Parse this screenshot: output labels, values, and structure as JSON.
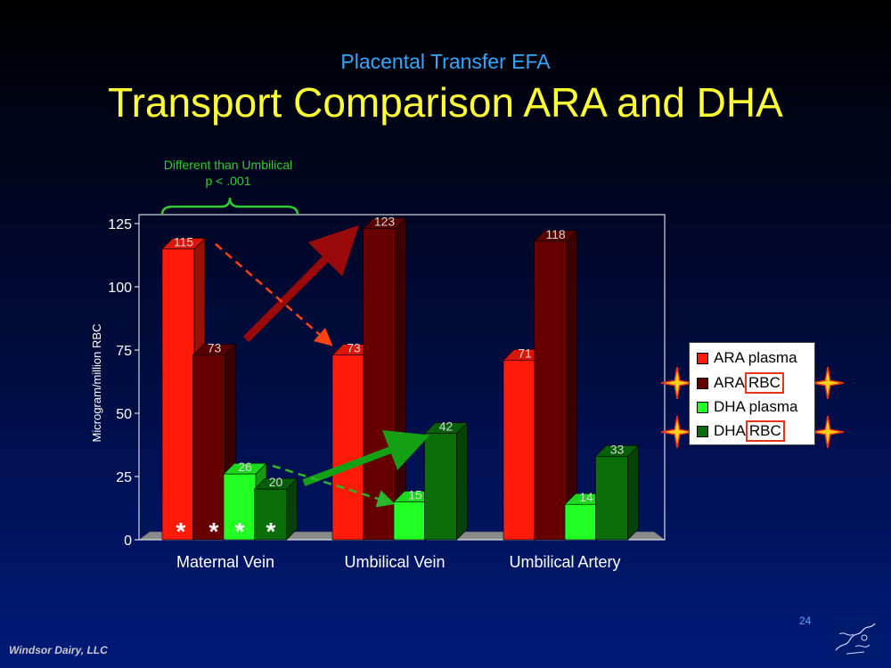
{
  "slide": {
    "subtitle": "Placental Transfer EFA",
    "title": "Transport Comparison ARA and DHA",
    "footer": "Windsor Dairy, LLC",
    "page_number": "24"
  },
  "annotations": {
    "brace_line1": "Different  than Umbilical",
    "brace_line2": "p < .001",
    "asterisk": "*"
  },
  "colors": {
    "ara_plasma": "#ff1a0a",
    "ara_rbc": "#660000",
    "dha_plasma": "#22ff22",
    "dha_rbc": "#0a6e0a",
    "arrow_red_dark": "#9b0a0a",
    "arrow_green": "#14a014",
    "dashed_red": "#ff4411",
    "dashed_green": "#2bb52b",
    "brace": "#33cc33",
    "star_fill": "#ffd21a",
    "star_outline": "#e8341c"
  },
  "legend": {
    "items": [
      {
        "text": "ARA plasma",
        "boxed": "",
        "color": "#ff1a0a"
      },
      {
        "text": "ARA ",
        "boxed": "RBC",
        "color": "#660000"
      },
      {
        "text": "DHA plasma",
        "boxed": "",
        "color": "#22ff22"
      },
      {
        "text": "DHA ",
        "boxed": "RBC",
        "color": "#0a6e0a"
      }
    ]
  },
  "chart_data": {
    "type": "bar",
    "title": "Transport Comparison ARA and DHA",
    "subtitle": "Placental Transfer EFA",
    "xlabel": "",
    "ylabel": "Microgram/million RBC",
    "ylim": [
      0,
      125
    ],
    "yticks": [
      0,
      25,
      50,
      75,
      100,
      125
    ],
    "categories": [
      "Maternal Vein",
      "Umbilical Vein",
      "Umbilical Artery"
    ],
    "series": [
      {
        "name": "ARA plasma",
        "values": [
          115,
          73,
          71
        ]
      },
      {
        "name": "ARA RBC",
        "values": [
          73,
          123,
          118
        ]
      },
      {
        "name": "DHA plasma",
        "values": [
          26,
          15,
          14
        ]
      },
      {
        "name": "DHA RBC",
        "values": [
          20,
          42,
          33
        ]
      }
    ],
    "data_labels": [
      [
        "115",
        "73",
        "71"
      ],
      [
        "73",
        "123",
        "118"
      ],
      [
        "26",
        "15",
        "14"
      ],
      [
        "20",
        "42",
        "33"
      ]
    ],
    "grid": false,
    "legend": "right",
    "three_d": true
  }
}
